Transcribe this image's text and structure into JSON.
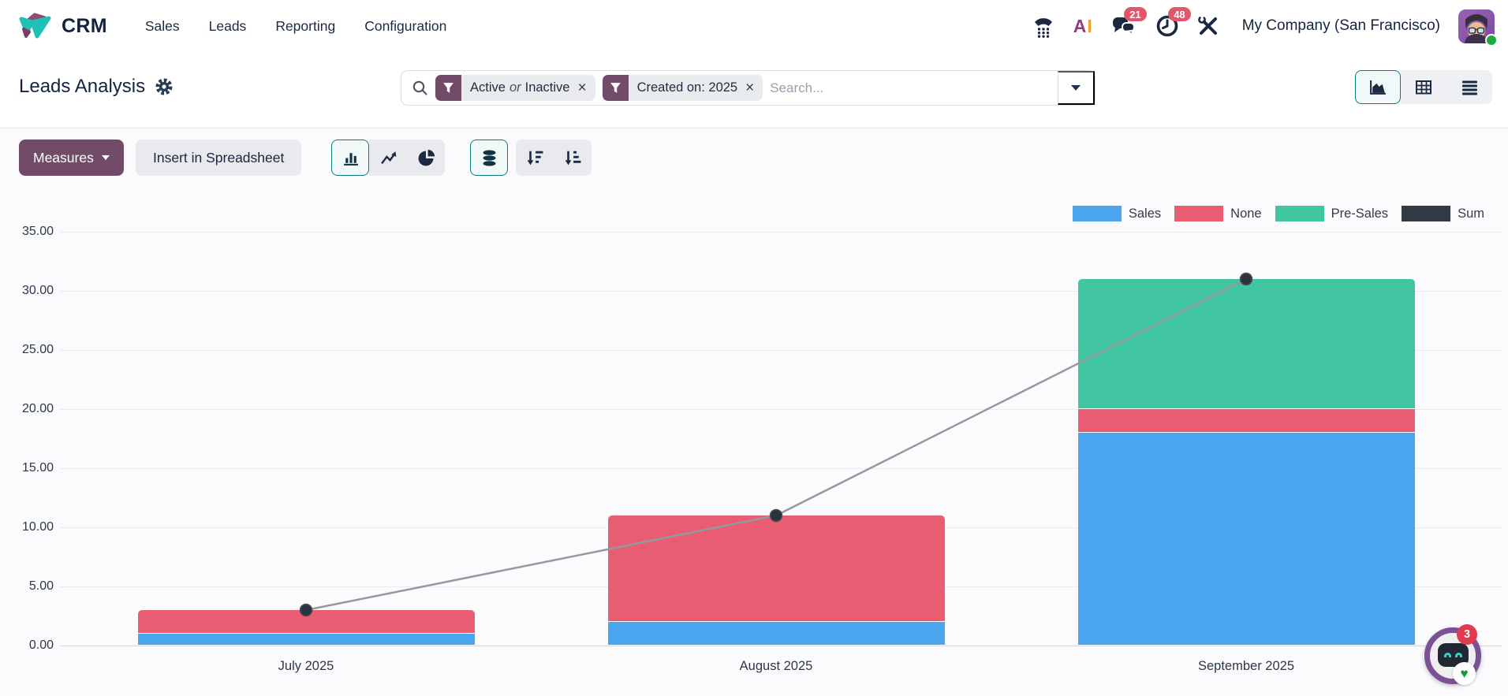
{
  "nav": {
    "app_name": "CRM",
    "menu": [
      "Sales",
      "Leads",
      "Reporting",
      "Configuration"
    ],
    "ai": {
      "a": "A",
      "i": "I"
    },
    "badges": {
      "messages": "21",
      "activities": "48"
    },
    "company": "My Company (San Francisco)"
  },
  "control_panel": {
    "title": "Leads Analysis",
    "search": {
      "placeholder": "Search...",
      "close_glyph": "×",
      "facets": [
        {
          "a": "Active",
          "op": "or",
          "b": "Inactive"
        },
        {
          "a": "Created on: 2025",
          "op": "",
          "b": ""
        }
      ]
    },
    "view_switcher": [
      "graph",
      "pivot",
      "list"
    ],
    "active_view": "graph"
  },
  "toolbar": {
    "measures_label": "Measures",
    "insert_label": "Insert in Spreadsheet",
    "active_chart_type": "bar",
    "stacked_enabled": true
  },
  "icons": {
    "heart": "♥",
    "names": [
      "phone-icon",
      "ai-icon",
      "messages-icon",
      "activities-icon",
      "tools-icon",
      "search-icon",
      "filter-icon",
      "gear-icon",
      "caret-down-icon",
      "graph-view-icon",
      "pivot-view-icon",
      "list-view-icon",
      "bar-chart-icon",
      "line-chart-icon",
      "pie-chart-icon",
      "stacked-icon",
      "sort-desc-icon",
      "sort-asc-icon",
      "robot-icon"
    ]
  },
  "colors": {
    "primary_purple": "#714B67",
    "accent_teal": "#0b7c80",
    "badge_pink": "#e4556a",
    "sales_blue": "#4BA6F0",
    "none_red": "#E95D72",
    "presales_teal": "#42C6A1",
    "sum_dark": "#343A44",
    "line_gray": "#95989c"
  },
  "chart_data": {
    "type": "bar",
    "stacked": true,
    "categories": [
      "July 2025",
      "August 2025",
      "September 2025"
    ],
    "series": [
      {
        "name": "Sales",
        "type": "bar",
        "color": "#4BA6F0",
        "values": [
          1,
          2,
          18
        ]
      },
      {
        "name": "None",
        "type": "bar",
        "color": "#E95D72",
        "values": [
          2,
          9,
          2
        ]
      },
      {
        "name": "Pre-Sales",
        "type": "bar",
        "color": "#42C6A1",
        "values": [
          0,
          0,
          11
        ]
      },
      {
        "name": "Sum",
        "type": "line",
        "color": "#343A44",
        "values": [
          3,
          11,
          31
        ]
      }
    ],
    "ylim": [
      0,
      35
    ],
    "y_ticks": [
      "35.00",
      "30.00",
      "25.00",
      "20.00",
      "15.00",
      "10.00",
      "5.00",
      "0.00"
    ],
    "grid": true,
    "legend_position": "top-right"
  },
  "chatbot": {
    "badge": "3"
  }
}
